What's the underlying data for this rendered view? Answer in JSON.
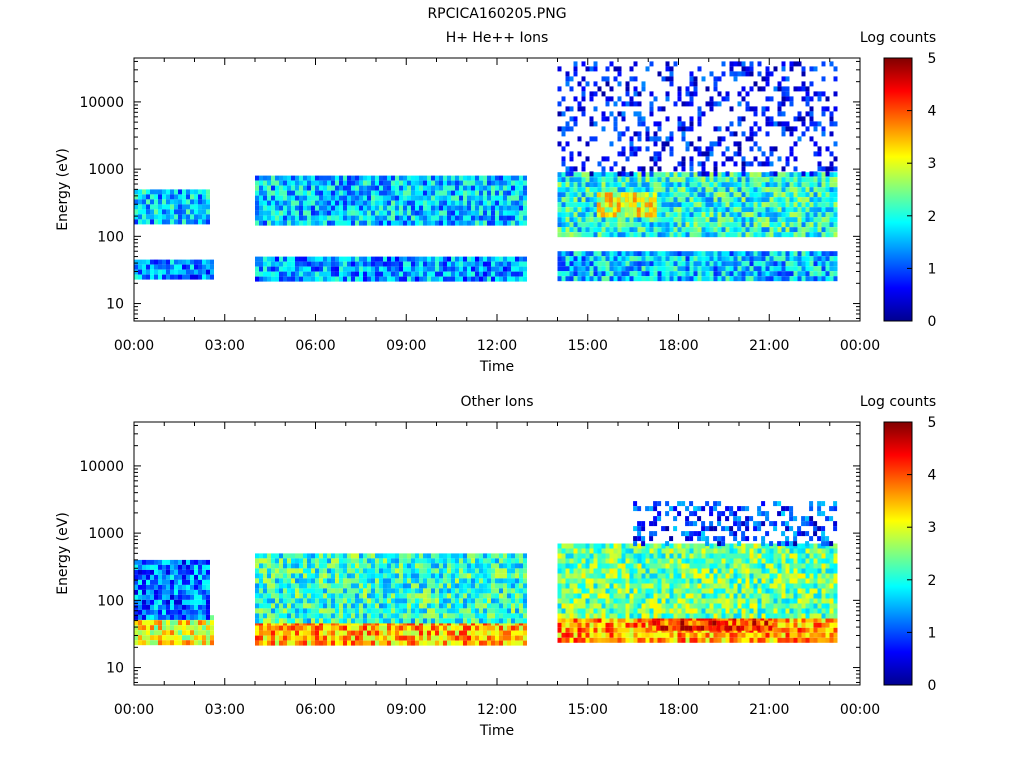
{
  "figure_title": "RPCICA160205.PNG",
  "chart_data": [
    {
      "type": "heatmap",
      "title": "H+ He++ Ions",
      "xlabel": "Time",
      "ylabel": "Energy (eV)",
      "x_ticks": [
        "00:00",
        "03:00",
        "06:00",
        "09:00",
        "12:00",
        "15:00",
        "18:00",
        "21:00",
        "00:00"
      ],
      "x_range_hours": [
        0,
        24
      ],
      "y_scale": "log",
      "y_range": [
        5.5,
        45000
      ],
      "y_ticks": [
        10,
        100,
        1000,
        10000
      ],
      "y_tick_labels": [
        "10",
        "100",
        "1000",
        "10000"
      ],
      "colorbar": {
        "label": "Log counts",
        "range": [
          0,
          5
        ],
        "ticks": [
          "0",
          "1",
          "2",
          "3",
          "4",
          "5"
        ]
      },
      "data_intervals_hours": [
        [
          0.0,
          2.6
        ],
        [
          4.0,
          12.9
        ],
        [
          14.0,
          23.2
        ]
      ],
      "bands": [
        {
          "start_h": 0.0,
          "end_h": 2.6,
          "e_min": 25,
          "e_max": 45,
          "level": 1.3
        },
        {
          "start_h": 0.0,
          "end_h": 2.4,
          "e_min": 170,
          "e_max": 500,
          "level": 1.6
        },
        {
          "start_h": 4.0,
          "end_h": 12.9,
          "e_min": 25,
          "e_max": 50,
          "level": 1.4
        },
        {
          "start_h": 4.0,
          "end_h": 12.9,
          "e_min": 150,
          "e_max": 800,
          "level": 1.6
        },
        {
          "start_h": 14.0,
          "end_h": 23.2,
          "e_min": 25,
          "e_max": 60,
          "level": 1.6
        },
        {
          "start_h": 14.0,
          "end_h": 23.2,
          "e_min": 100,
          "e_max": 900,
          "level": 2.0
        },
        {
          "start_h": 15.3,
          "end_h": 17.2,
          "e_min": 200,
          "e_max": 450,
          "level": 3.0
        },
        {
          "start_h": 14.0,
          "end_h": 23.2,
          "e_min": 900,
          "e_max": 40000,
          "level": 0.5
        }
      ]
    },
    {
      "type": "heatmap",
      "title": "Other Ions",
      "xlabel": "Time",
      "ylabel": "Energy (eV)",
      "x_ticks": [
        "00:00",
        "03:00",
        "06:00",
        "09:00",
        "12:00",
        "15:00",
        "18:00",
        "21:00",
        "00:00"
      ],
      "x_range_hours": [
        0,
        24
      ],
      "y_scale": "log",
      "y_range": [
        5.5,
        45000
      ],
      "y_ticks": [
        10,
        100,
        1000,
        10000
      ],
      "y_tick_labels": [
        "10",
        "100",
        "1000",
        "10000"
      ],
      "colorbar": {
        "label": "Log counts",
        "range": [
          0,
          5
        ],
        "ticks": [
          "0",
          "1",
          "2",
          "3",
          "4",
          "5"
        ]
      },
      "data_intervals_hours": [
        [
          0.0,
          2.6
        ],
        [
          4.0,
          12.9
        ],
        [
          14.0,
          23.2
        ]
      ],
      "bands": [
        {
          "start_h": 0.0,
          "end_h": 2.6,
          "e_min": 22,
          "e_max": 60,
          "level": 3.1
        },
        {
          "start_h": 0.0,
          "end_h": 2.4,
          "e_min": 60,
          "e_max": 400,
          "level": 1.2
        },
        {
          "start_h": 4.0,
          "end_h": 12.9,
          "e_min": 25,
          "e_max": 50,
          "level": 3.5
        },
        {
          "start_h": 4.0,
          "end_h": 12.9,
          "e_min": 50,
          "e_max": 500,
          "level": 2.1
        },
        {
          "start_h": 14.0,
          "end_h": 23.2,
          "e_min": 25,
          "e_max": 55,
          "level": 3.6
        },
        {
          "start_h": 17.0,
          "end_h": 21.0,
          "e_min": 40,
          "e_max": 70,
          "level": 4.1
        },
        {
          "start_h": 14.0,
          "end_h": 23.2,
          "e_min": 55,
          "e_max": 700,
          "level": 2.4
        },
        {
          "start_h": 16.5,
          "end_h": 23.2,
          "e_min": 700,
          "e_max": 3000,
          "level": 0.9
        }
      ]
    }
  ]
}
